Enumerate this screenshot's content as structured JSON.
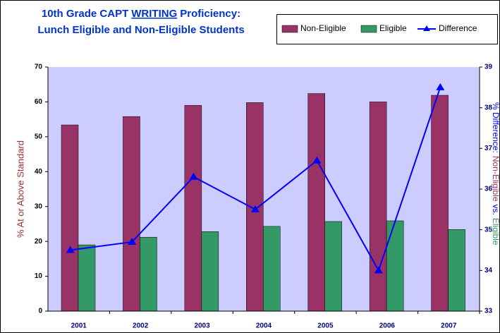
{
  "chart_data": {
    "type": "bar",
    "title": [
      "10th Grade CAPT",
      "WRITING",
      "Proficiency:",
      "Lunch Eligible and Non-Eligible Students"
    ],
    "y_label": "% At or Above Standard",
    "y2_label": [
      "% Difference:",
      "Non-Eligible",
      "vs.",
      "Eligible"
    ],
    "categories": [
      "2001",
      "2002",
      "2003",
      "2004",
      "2005",
      "2006",
      "2007"
    ],
    "series": [
      {
        "name": "Non-Eligible",
        "type": "bar",
        "color": "#993366",
        "values": [
          53.4,
          55.8,
          59.0,
          59.8,
          62.4,
          60.0,
          61.9
        ]
      },
      {
        "name": "Eligible",
        "type": "bar",
        "color": "#339966",
        "values": [
          19.0,
          21.2,
          22.8,
          24.3,
          25.7,
          25.9,
          23.4
        ]
      },
      {
        "name": "Difference",
        "type": "line",
        "axis": "y2",
        "color": "#0000ff",
        "marker": "triangle",
        "values": [
          34.5,
          34.7,
          36.3,
          35.5,
          36.7,
          34.0,
          38.5
        ]
      }
    ],
    "ylim": [
      0,
      70
    ],
    "yticks": [
      0,
      10,
      20,
      30,
      40,
      50,
      60,
      70
    ],
    "y2lim": [
      33,
      39
    ],
    "y2ticks": [
      33,
      34,
      35,
      36,
      37,
      38,
      39
    ],
    "plot_background": "#ccccff",
    "legend": "top-right"
  }
}
